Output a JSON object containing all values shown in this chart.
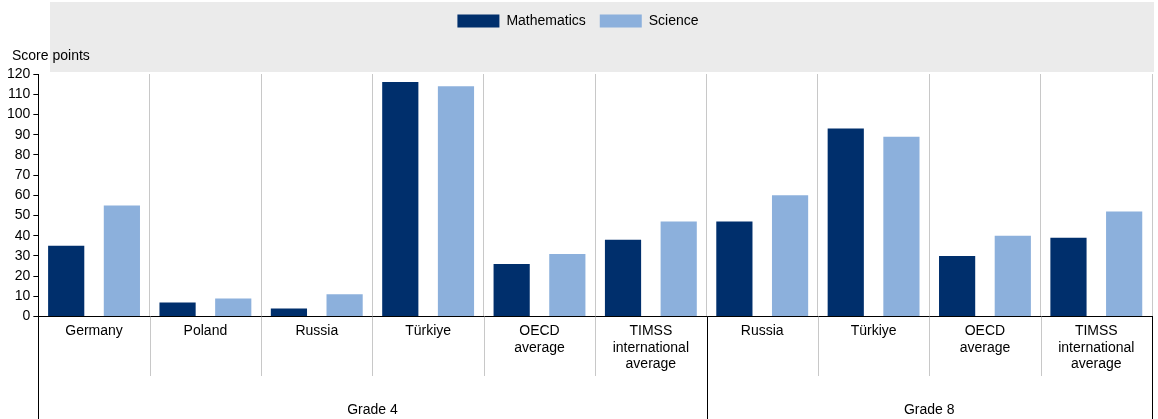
{
  "chart_data": {
    "type": "bar",
    "ylabel": "Score points",
    "categories": [
      "Germany",
      "Poland",
      "Russia",
      "Türkiye",
      "OECD average",
      "TIMSS international average",
      "Russia",
      "Türkiye",
      "OECD average",
      "TIMSS international average"
    ],
    "series": [
      {
        "name": "Mathematics",
        "color": "#002f6c",
        "values": [
          35,
          7,
          4,
          116,
          26,
          38,
          47,
          93,
          30,
          39
        ]
      },
      {
        "name": "Science",
        "color": "#8cb0dc",
        "values": [
          55,
          9,
          11,
          114,
          31,
          47,
          60,
          89,
          40,
          52
        ]
      }
    ],
    "ylim": [
      0,
      120
    ],
    "yticks": [
      0,
      10,
      20,
      30,
      40,
      50,
      60,
      70,
      80,
      90,
      100,
      110,
      120
    ],
    "grid": "x",
    "legend": "top",
    "annotations": [
      "Grade 4",
      "Grade 8"
    ]
  }
}
